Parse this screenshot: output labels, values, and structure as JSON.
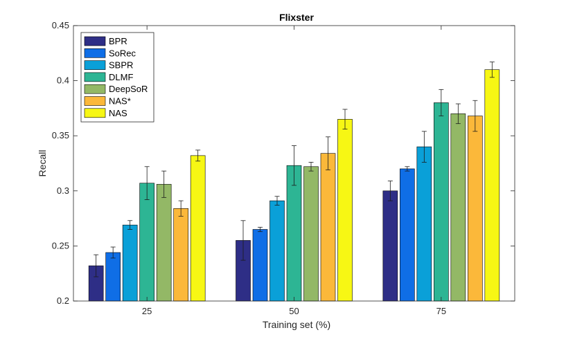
{
  "chart_data": {
    "type": "bar",
    "title": "Flixster",
    "xlabel": "Training set (%)",
    "ylabel": "Recall",
    "ylim": [
      0.2,
      0.45
    ],
    "yticks": [
      0.2,
      0.25,
      0.3,
      0.35,
      0.4,
      0.45
    ],
    "ytick_labels": [
      "0.2",
      "0.25",
      "0.3",
      "0.35",
      "0.4",
      "0.45"
    ],
    "categories": [
      "25",
      "50",
      "75"
    ],
    "legend_position": "top-left",
    "grid": false,
    "series": [
      {
        "name": "BPR",
        "color": "#2e2e86",
        "values": [
          0.232,
          0.255,
          0.3
        ],
        "errors": [
          0.01,
          0.018,
          0.009
        ]
      },
      {
        "name": "SoRec",
        "color": "#0f6ee6",
        "values": [
          0.244,
          0.265,
          0.32
        ],
        "errors": [
          0.005,
          0.002,
          0.002
        ]
      },
      {
        "name": "SBPR",
        "color": "#0aa0d8",
        "values": [
          0.269,
          0.291,
          0.34
        ],
        "errors": [
          0.004,
          0.004,
          0.014
        ]
      },
      {
        "name": "DLMF",
        "color": "#2db594",
        "values": [
          0.307,
          0.323,
          0.38
        ],
        "errors": [
          0.015,
          0.018,
          0.012
        ]
      },
      {
        "name": "DeepSoR",
        "color": "#93b866",
        "values": [
          0.306,
          0.322,
          0.37
        ],
        "errors": [
          0.012,
          0.004,
          0.009
        ]
      },
      {
        "name": "NAS*",
        "color": "#fbb83a",
        "values": [
          0.284,
          0.334,
          0.368
        ],
        "errors": [
          0.007,
          0.015,
          0.014
        ]
      },
      {
        "name": "NAS",
        "color": "#f7f714",
        "values": [
          0.332,
          0.365,
          0.41
        ],
        "errors": [
          0.005,
          0.009,
          0.007
        ]
      }
    ]
  }
}
